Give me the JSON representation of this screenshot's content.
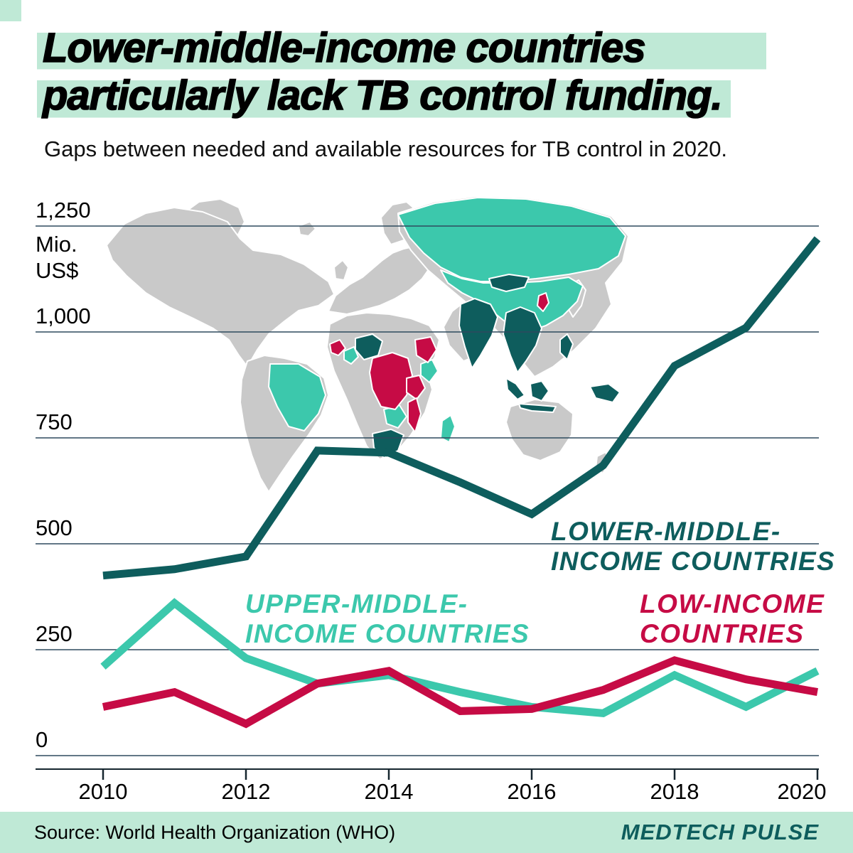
{
  "header": {
    "title_line1": "Lower-middle-income countries",
    "title_line2": "particularly lack TB control funding.",
    "subtitle": "Gaps between needed and available resources for TB control in 2020."
  },
  "footer": {
    "source": "Source: World Health Organization (WHO)",
    "brand": "MEDTECH PULSE"
  },
  "palette": {
    "dark_teal": "#0e5d5d",
    "teal": "#3cc8ac",
    "crimson": "#c60b45",
    "mint": "#bfe9d6",
    "map_gray": "#c9c9c9",
    "grid": "#2e4a5e"
  },
  "chart_data": {
    "type": "line",
    "title": "Gaps between needed and available resources for TB control in 2020",
    "unit": "Mio. US$",
    "unit_lines": [
      "Mio.",
      "US$"
    ],
    "x": [
      2010,
      2011,
      2012,
      2013,
      2014,
      2015,
      2016,
      2017,
      2018,
      2019,
      2020
    ],
    "x_ticks": [
      2010,
      2012,
      2014,
      2016,
      2018,
      2020
    ],
    "y_ticks": [
      {
        "value": 1250,
        "label": "1,250"
      },
      {
        "value": 1000,
        "label": "1,000"
      },
      {
        "value": 750,
        "label": "750"
      },
      {
        "value": 500,
        "label": "500"
      },
      {
        "value": 250,
        "label": "250"
      },
      {
        "value": 0,
        "label": "0"
      }
    ],
    "ylim": [
      0,
      1300
    ],
    "grid": true,
    "legend_position": "inline-labels",
    "series": [
      {
        "name": "Lower-middle-income countries",
        "label_lines": [
          "LOWER-MIDDLE-",
          "INCOME COUNTRIES"
        ],
        "color": "#0e5d5d",
        "values": [
          425,
          440,
          470,
          720,
          715,
          645,
          570,
          685,
          920,
          1010,
          1220
        ]
      },
      {
        "name": "Upper-middle-income countries",
        "label_lines": [
          "UPPER-MIDDLE-",
          "INCOME COUNTRIES"
        ],
        "color": "#3cc8ac",
        "values": [
          210,
          360,
          230,
          170,
          190,
          150,
          115,
          100,
          190,
          115,
          200
        ]
      },
      {
        "name": "Low-income countries",
        "label_lines": [
          "LOW-INCOME",
          "COUNTRIES"
        ],
        "color": "#c60b45",
        "values": [
          115,
          150,
          75,
          170,
          200,
          105,
          110,
          155,
          225,
          180,
          150
        ]
      }
    ]
  }
}
